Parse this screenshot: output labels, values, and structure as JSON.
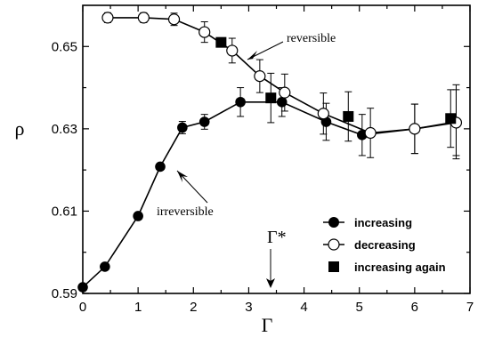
{
  "chart_data": {
    "type": "scatter",
    "xlabel": "Γ",
    "ylabel": "ρ",
    "xlim": [
      0,
      7
    ],
    "ylim": [
      0.59,
      0.66
    ],
    "x_ticks": [
      0,
      1,
      2,
      3,
      4,
      5,
      6,
      7
    ],
    "y_ticks": [
      0.59,
      0.61,
      0.63,
      0.65
    ],
    "legend_position": "bottom-right",
    "series": [
      {
        "name": "increasing",
        "marker": "filled-circle",
        "connected": true,
        "x": [
          0,
          0.4,
          1.0,
          1.4,
          1.8,
          2.2,
          2.85,
          3.6,
          4.4,
          5.05,
          6.0,
          6.75
        ],
        "y": [
          0.5915,
          0.5965,
          0.6088,
          0.6208,
          0.6303,
          0.6317,
          0.6365,
          0.6365,
          0.6317,
          0.6285,
          0.63,
          0.6317
        ],
        "err": [
          0,
          0.0005,
          0.0005,
          0.0008,
          0.0015,
          0.0018,
          0.0035,
          0.0035,
          0.0045,
          0.005,
          0.006,
          0.009
        ]
      },
      {
        "name": "decreasing",
        "marker": "open-circle",
        "connected": true,
        "x": [
          0.45,
          1.1,
          1.65,
          2.2,
          2.7,
          3.2,
          3.65,
          4.35,
          5.2,
          6.0,
          6.75
        ],
        "y": [
          0.657,
          0.657,
          0.6566,
          0.6535,
          0.649,
          0.6428,
          0.6388,
          0.6337,
          0.629,
          0.63,
          0.6315
        ],
        "err": [
          0.0012,
          0.0012,
          0.0015,
          0.0025,
          0.003,
          0.004,
          0.0045,
          0.005,
          0.006,
          0.006,
          0.008
        ]
      },
      {
        "name": "increasing again",
        "marker": "filled-square",
        "connected": false,
        "x": [
          2.5,
          3.4,
          4.8,
          6.65
        ],
        "y": [
          0.651,
          0.6375,
          0.633,
          0.6325
        ],
        "err": [
          0,
          0.006,
          0.006,
          0.007
        ]
      }
    ],
    "annotations": [
      {
        "text": "reversible",
        "x": 3.9,
        "y": 0.6535
      },
      {
        "text": "irreversible",
        "x": 1.75,
        "y": 0.6105
      },
      {
        "text": "Γ*",
        "x": 3.35,
        "y": 0.5985
      }
    ]
  }
}
